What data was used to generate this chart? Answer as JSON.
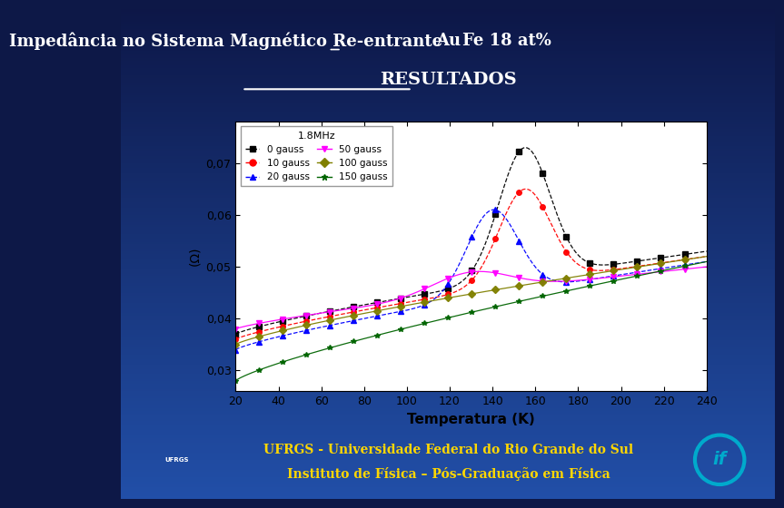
{
  "title": "Impedância no Sistema Magnético Re-entrante AuFe 18 at%",
  "title_underline": "Au",
  "subtitle": "RESULTADOS",
  "bg_color_top": "#0d1847",
  "bg_color_bottom": "#1a4faa",
  "footer_text1": "UFRGS - Universidade Federal do Rio Grande do Sul",
  "footer_text2": "Instituto de Física – Pós-Graduação em Física",
  "plot_freq": "1.8MHz",
  "xlabel": "Temperatura (K)",
  "ylabel": "(Ω)",
  "xlim": [
    20,
    240
  ],
  "ylim": [
    0.026,
    0.078
  ],
  "yticks": [
    0.03,
    0.04,
    0.05,
    0.06,
    0.07
  ],
  "xticks": [
    20,
    40,
    60,
    80,
    100,
    120,
    140,
    160,
    180,
    200,
    220,
    240
  ],
  "colors": [
    "black",
    "red",
    "blue",
    "magenta",
    "#808000",
    "#006400"
  ],
  "styles": [
    "--",
    "--",
    "--",
    "-",
    "-",
    "-"
  ],
  "markers": [
    "s",
    "o",
    "^",
    "v",
    "D",
    "*"
  ],
  "labels": [
    "0 gauss",
    "10 gauss",
    "20 gauss",
    "50 gauss",
    "100 gauss",
    "150 gauss"
  ],
  "series_params": [
    [
      0.037,
      0.053,
      155,
      0.073,
      12
    ],
    [
      0.036,
      0.052,
      155,
      0.065,
      12
    ],
    [
      0.034,
      0.051,
      140,
      0.061,
      12
    ],
    [
      0.038,
      0.05,
      130,
      0.049,
      18
    ],
    [
      0.035,
      0.052,
      null,
      null,
      null
    ],
    [
      0.028,
      0.051,
      null,
      null,
      null
    ]
  ]
}
